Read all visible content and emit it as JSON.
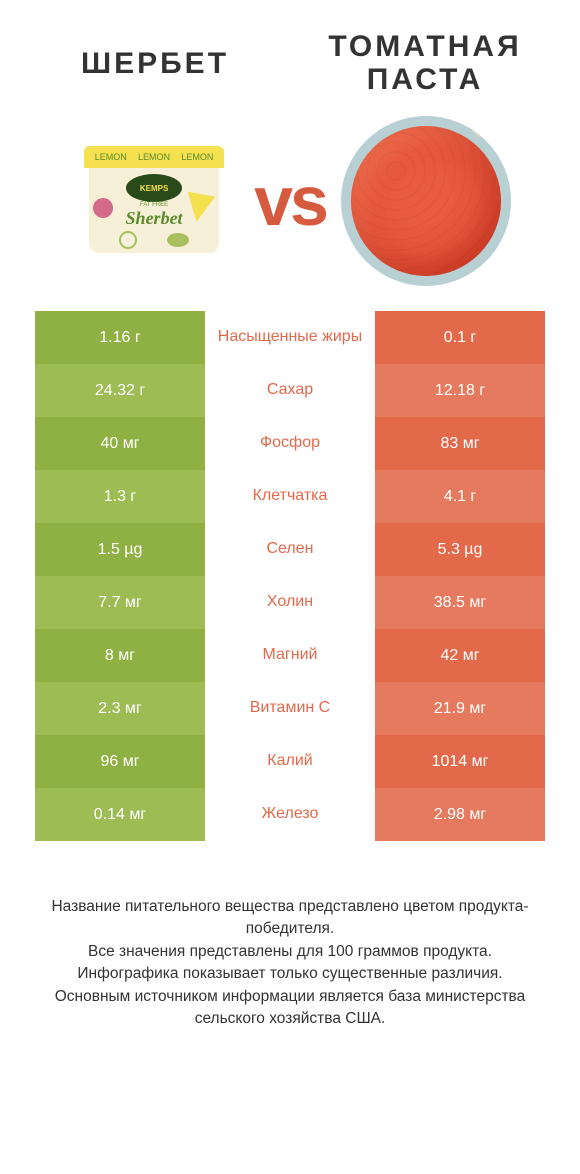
{
  "colors": {
    "green_a": "#8fb043",
    "green_b": "#9ebc54",
    "red_a": "#e3694b",
    "red_b": "#e67a5e",
    "mid_text_green": "#8fb043",
    "mid_text_red": "#e3694b",
    "vs": "#d65a3e"
  },
  "header": {
    "left": "Шербет",
    "right_line1": "Томатная",
    "right_line2": "паста"
  },
  "sherbet_tub": {
    "lid_word": "LEMON",
    "brand": "KEMPS",
    "fatfree": "FAT FREE",
    "label": "Sherbet"
  },
  "vs_text": "vs",
  "rows": [
    {
      "left": "1.16 г",
      "mid": "Насыщенные жиры",
      "right": "0.1 г",
      "winner": "right"
    },
    {
      "left": "24.32 г",
      "mid": "Сахар",
      "right": "12.18 г",
      "winner": "right"
    },
    {
      "left": "40 мг",
      "mid": "Фосфор",
      "right": "83 мг",
      "winner": "right"
    },
    {
      "left": "1.3 г",
      "mid": "Клетчатка",
      "right": "4.1 г",
      "winner": "right"
    },
    {
      "left": "1.5 µg",
      "mid": "Селен",
      "right": "5.3 µg",
      "winner": "right"
    },
    {
      "left": "7.7 мг",
      "mid": "Холин",
      "right": "38.5 мг",
      "winner": "right"
    },
    {
      "left": "8 мг",
      "mid": "Магний",
      "right": "42 мг",
      "winner": "right"
    },
    {
      "left": "2.3 мг",
      "mid": "Витамин C",
      "right": "21.9 мг",
      "winner": "right"
    },
    {
      "left": "96 мг",
      "mid": "Калий",
      "right": "1014 мг",
      "winner": "right"
    },
    {
      "left": "0.14 мг",
      "mid": "Железо",
      "right": "2.98 мг",
      "winner": "right"
    }
  ],
  "footer": {
    "l1": "Название питательного вещества представлено цветом продукта-победителя.",
    "l2": "Все значения представлены для 100 граммов продукта.",
    "l3": "Инфографика показывает только существенные различия.",
    "l4": "Основным источником информации является база министерства сельского хозяйства США."
  }
}
